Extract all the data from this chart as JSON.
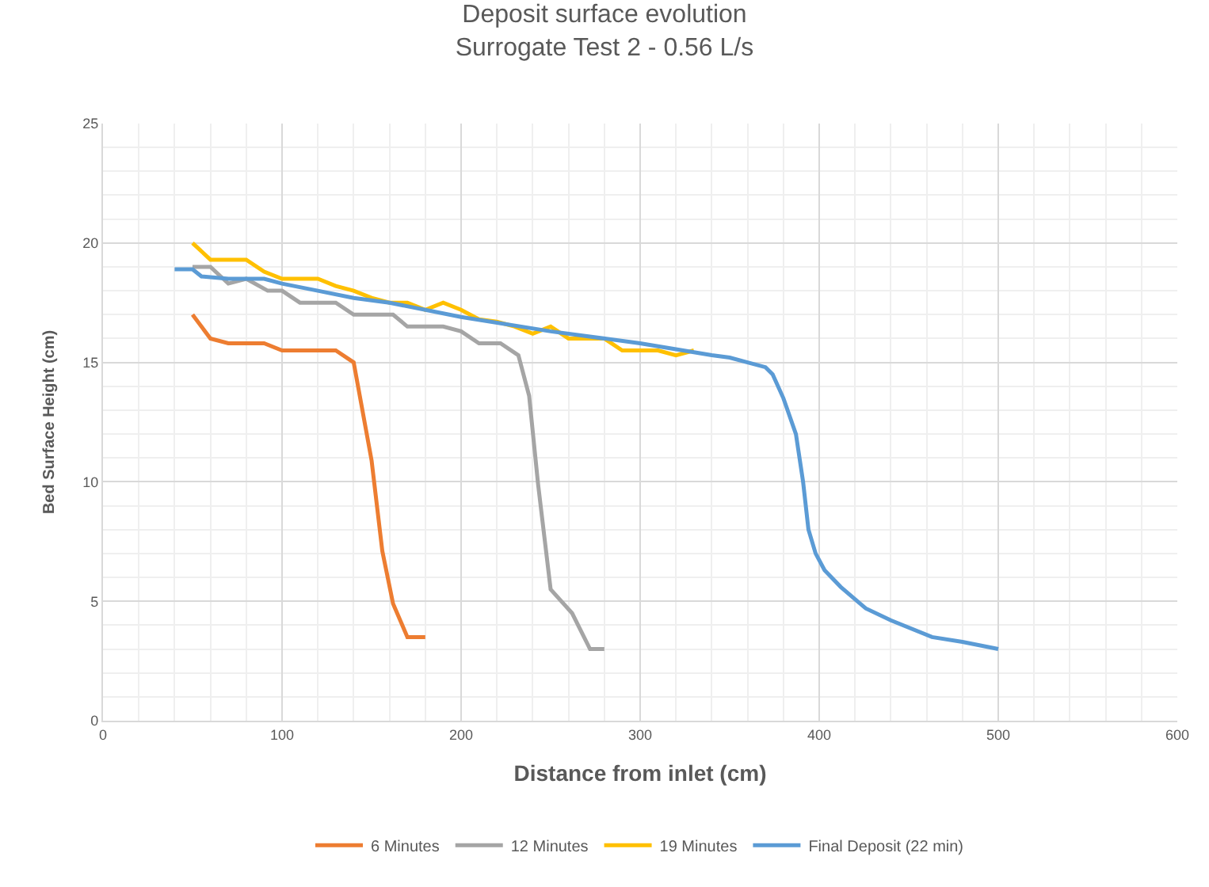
{
  "chart_data": {
    "type": "line",
    "title": "Deposit surface evolution\nSurrogate Test 2 - 0.56 L/s",
    "xlabel": "Distance from inlet (cm)",
    "ylabel": "Bed Surface Height (cm)",
    "xlim": [
      0,
      600
    ],
    "xticks": [
      0,
      100,
      200,
      300,
      400,
      500,
      600
    ],
    "ylim": [
      0,
      25
    ],
    "yticks": [
      0,
      5,
      10,
      15,
      20,
      25
    ],
    "grid": true,
    "legend": "bottom",
    "marker": "none",
    "line_style": "solid",
    "series": [
      {
        "name": "6 Minutes",
        "color": "#ed7d31",
        "x": [
          50,
          60,
          70,
          90,
          100,
          130,
          140,
          150,
          156,
          162,
          170,
          180
        ],
        "values": [
          17,
          16,
          15.8,
          15.8,
          15.5,
          15.5,
          15,
          10.9,
          7.1,
          4.9,
          3.5,
          3.5
        ]
      },
      {
        "name": "12 Minutes",
        "color": "#a5a5a5",
        "x": [
          50,
          60,
          70,
          80,
          92,
          100,
          110,
          130,
          140,
          162,
          170,
          190,
          200,
          210,
          222,
          232,
          238,
          243,
          250,
          262,
          272,
          280
        ],
        "values": [
          19,
          19,
          18.3,
          18.5,
          18,
          18,
          17.5,
          17.5,
          17,
          17,
          16.5,
          16.5,
          16.3,
          15.8,
          15.8,
          15.3,
          13.6,
          9.9,
          5.5,
          4.5,
          3,
          3
        ]
      },
      {
        "name": "19 Minutes",
        "color": "#ffc000",
        "x": [
          50,
          60,
          80,
          90,
          100,
          120,
          130,
          140,
          150,
          160,
          170,
          180,
          190,
          200,
          210,
          220,
          230,
          240,
          250,
          260,
          280,
          290,
          300,
          310,
          320,
          330
        ],
        "values": [
          20,
          19.3,
          19.3,
          18.8,
          18.5,
          18.5,
          18.2,
          18,
          17.7,
          17.5,
          17.5,
          17.2,
          17.5,
          17.2,
          16.8,
          16.7,
          16.5,
          16.2,
          16.5,
          16,
          16,
          15.5,
          15.5,
          15.5,
          15.3,
          15.5
        ]
      },
      {
        "name": "Final Deposit (22 min)",
        "color": "#5b9bd5",
        "x": [
          40,
          50,
          55,
          70,
          90,
          100,
          120,
          140,
          160,
          200,
          250,
          300,
          340,
          350,
          360,
          370,
          374,
          380,
          387,
          391,
          394,
          398,
          403,
          412,
          426,
          440,
          463,
          480,
          500
        ],
        "values": [
          18.9,
          18.9,
          18.6,
          18.5,
          18.5,
          18.3,
          18,
          17.7,
          17.5,
          16.9,
          16.3,
          15.8,
          15.3,
          15.2,
          15,
          14.8,
          14.5,
          13.5,
          12,
          10,
          8,
          7,
          6.3,
          5.6,
          4.7,
          4.2,
          3.5,
          3.3,
          3
        ]
      }
    ]
  }
}
